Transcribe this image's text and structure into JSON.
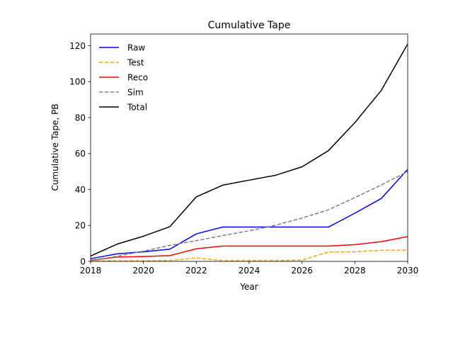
{
  "chart_data": {
    "type": "line",
    "title": "Cumulative Tape",
    "xlabel": "Year",
    "ylabel": "Cumulative Tape, PB",
    "xlim": [
      2018,
      2030
    ],
    "ylim": [
      0,
      126.5
    ],
    "xticks": [
      2018,
      2020,
      2022,
      2024,
      2026,
      2028,
      2030
    ],
    "xtick_labels": [
      "2018",
      "2020",
      "2022",
      "2024",
      "2026",
      "2028",
      "2030"
    ],
    "yticks": [
      0,
      20,
      40,
      60,
      80,
      100,
      120
    ],
    "ytick_labels": [
      "0",
      "20",
      "40",
      "60",
      "80",
      "100",
      "120"
    ],
    "grid": false,
    "legend_position": "top-left",
    "x": [
      2018,
      2019,
      2020,
      2021,
      2022,
      2023,
      2024,
      2025,
      2026,
      2027,
      2028,
      2029,
      2030
    ],
    "series": [
      {
        "name": "Raw",
        "color": "#0000ff",
        "style": "solid",
        "values": [
          1.5,
          4.2,
          5.3,
          6.8,
          15.3,
          19.1,
          19.1,
          19.1,
          19.1,
          19.1,
          26.8,
          35.0,
          51.2
        ]
      },
      {
        "name": "Test",
        "color": "#ffa500",
        "style": "dashed",
        "values": [
          0.3,
          0.3,
          0.3,
          0.5,
          1.9,
          0.4,
          0.4,
          0.4,
          0.7,
          5.2,
          5.3,
          6.2,
          6.2
        ]
      },
      {
        "name": "Reco",
        "color": "#ff0000",
        "style": "solid",
        "values": [
          0.6,
          2.4,
          2.7,
          3.2,
          7.0,
          8.5,
          8.5,
          8.5,
          8.5,
          8.5,
          9.3,
          11.0,
          13.8
        ]
      },
      {
        "name": "Sim",
        "color": "#808080",
        "style": "dashed",
        "values": [
          0.5,
          2.8,
          5.7,
          8.9,
          11.5,
          14.4,
          17.0,
          20.1,
          24.1,
          28.7,
          35.5,
          42.5,
          50.0
        ]
      },
      {
        "name": "Total",
        "color": "#000000",
        "style": "solid",
        "values": [
          3.0,
          9.6,
          14.0,
          19.3,
          35.9,
          42.4,
          45.2,
          47.9,
          52.6,
          61.6,
          77.2,
          95.1,
          121.0
        ]
      }
    ]
  }
}
